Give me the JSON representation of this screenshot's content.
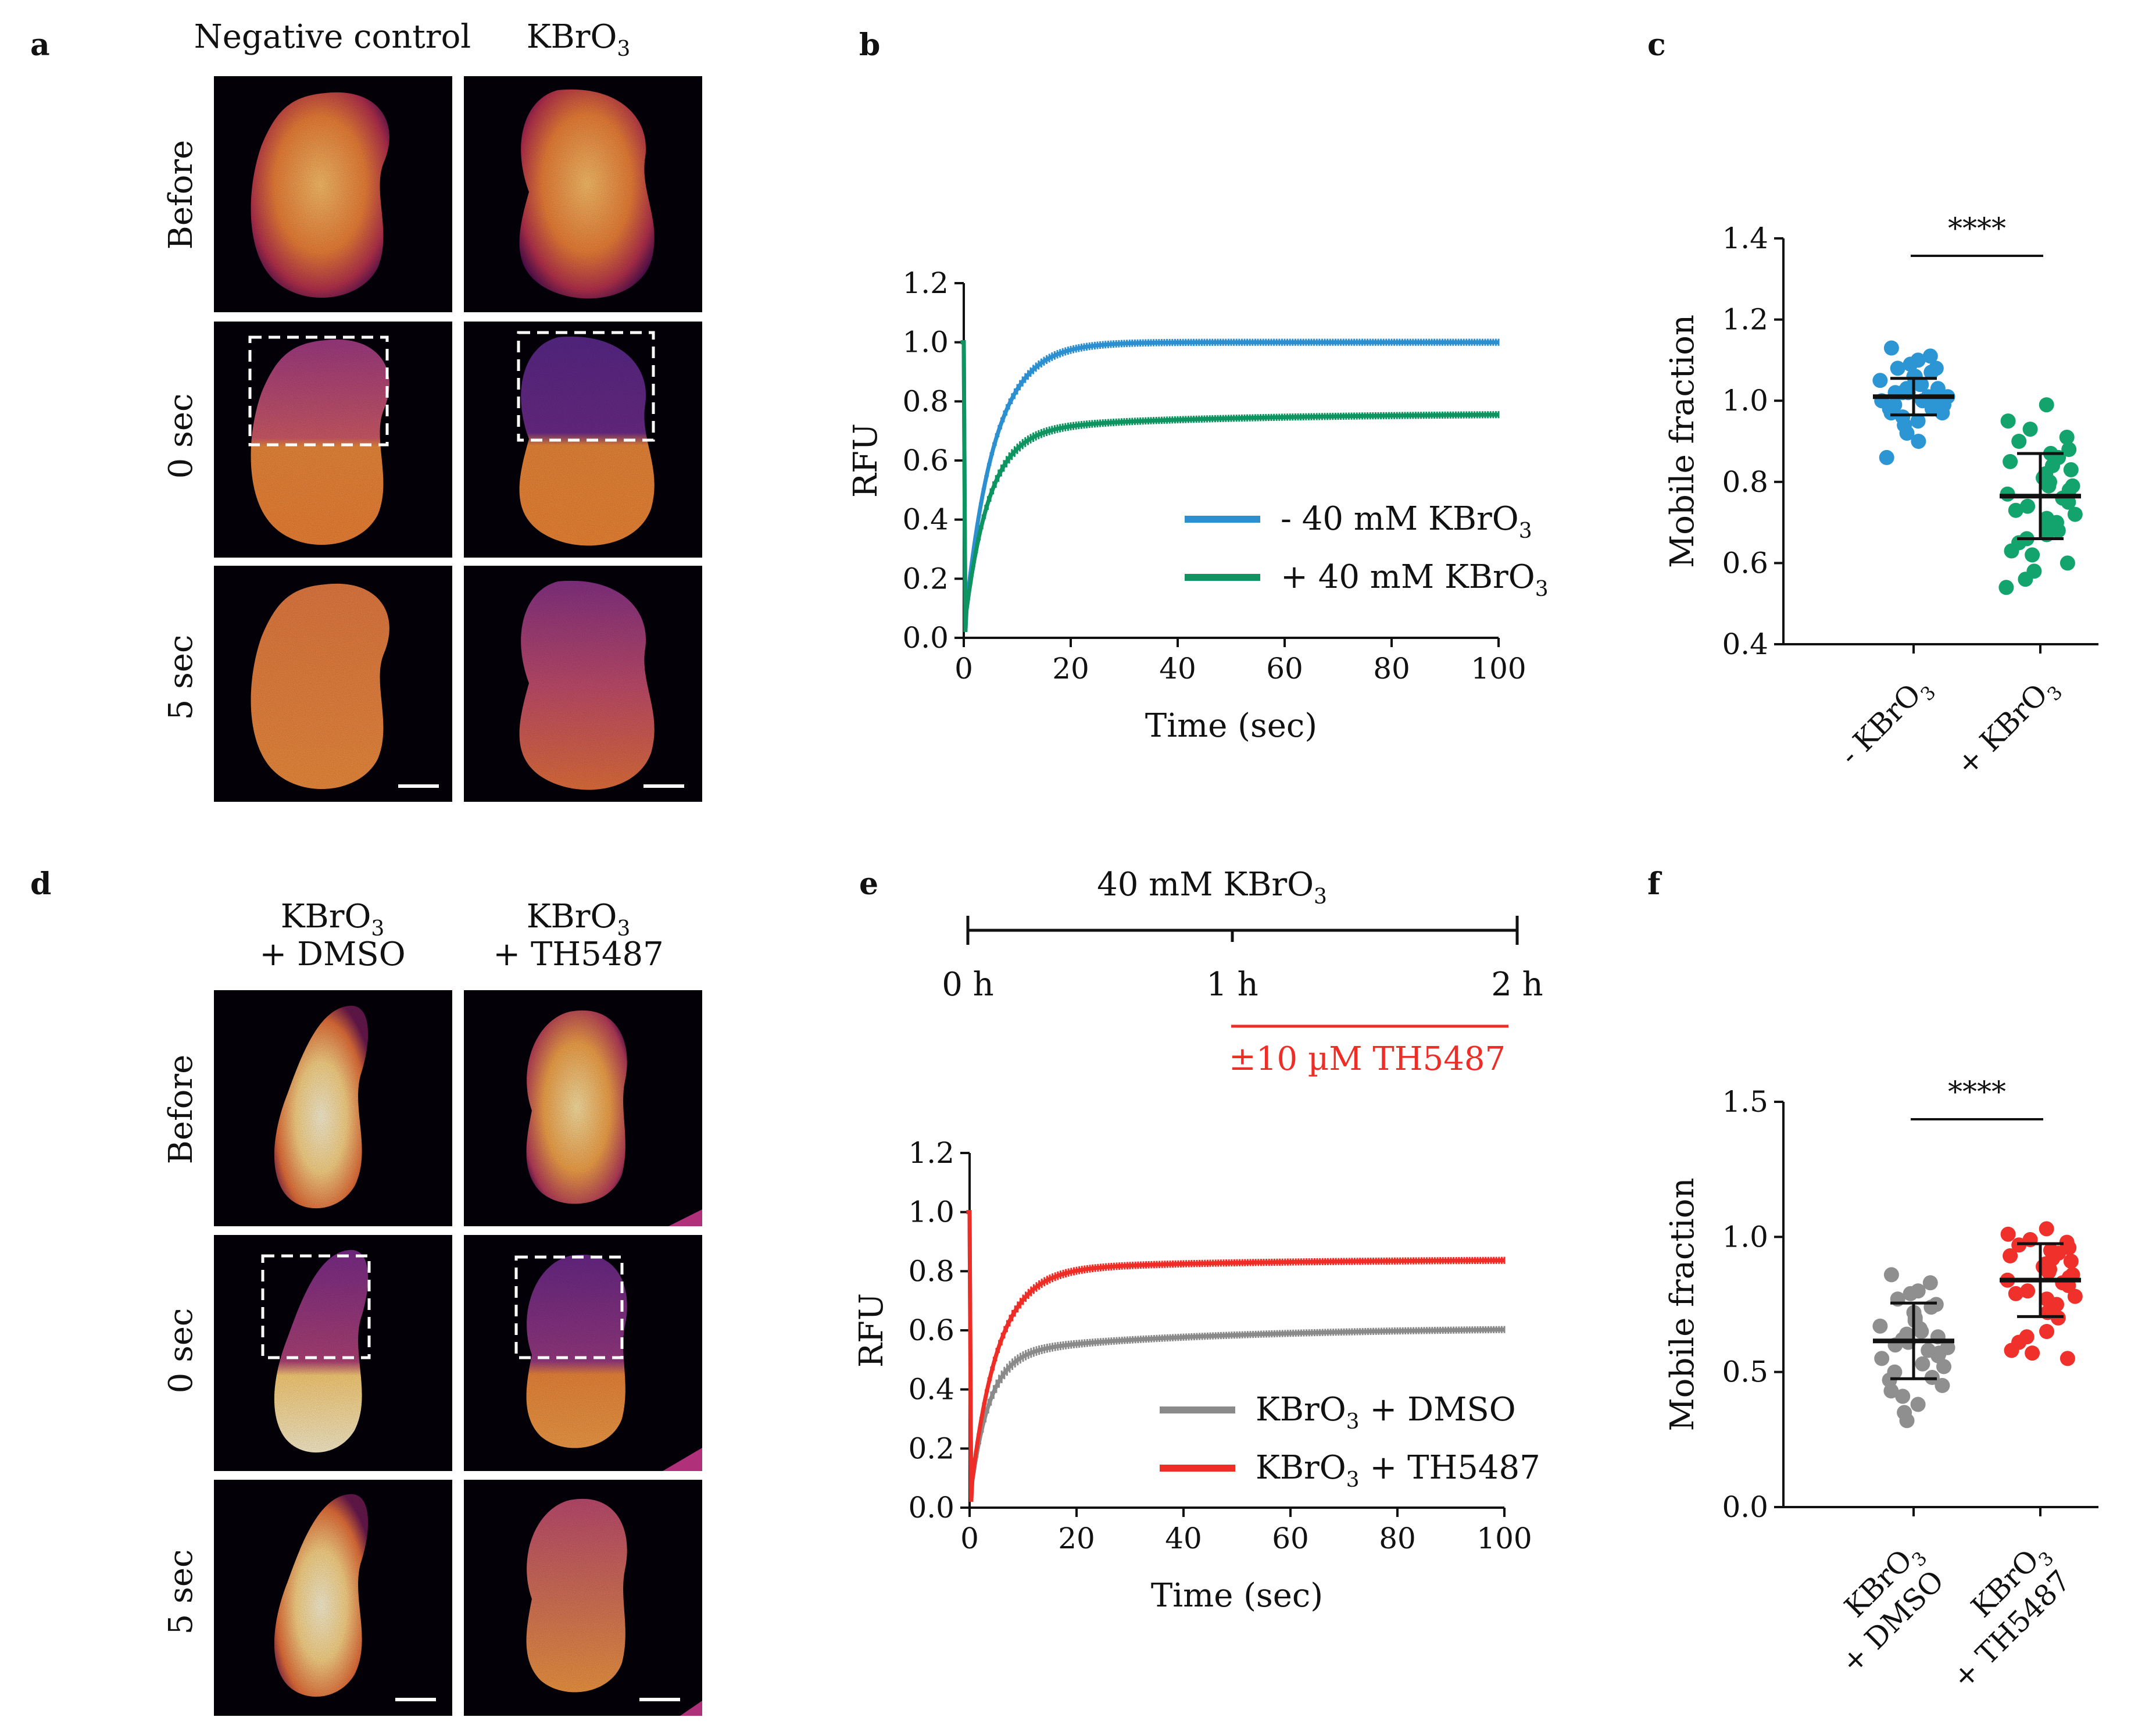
{
  "colors": {
    "blue": "#2b8fd0",
    "green": "#0e9460",
    "gray": "#8a8a8a",
    "red": "#ee2d26",
    "scatter_blue": "#2c95d4",
    "scatter_green": "#12a46c",
    "scatter_gray": "#8f8f8f",
    "scatter_red": "#f0302a",
    "timeline_red": "#ee2d26"
  },
  "panels": {
    "a": {
      "label": "a",
      "col1": "Negative control",
      "col2": "KBrO",
      "col2_sub": "3",
      "rows": [
        "Before",
        "0 sec",
        "5 sec"
      ]
    },
    "b": {
      "label": "b"
    },
    "c": {
      "label": "c"
    },
    "d": {
      "label": "d",
      "col1_line1": "KBrO",
      "col1_sub": "3",
      "col1_line2": "+ DMSO",
      "col2_line1": "KBrO",
      "col2_sub": "3",
      "col2_line2": "+ TH5487",
      "rows": [
        "Before",
        "0 sec",
        "5 sec"
      ]
    },
    "e": {
      "label": "e",
      "timeline_title": "40 mM  KBrO",
      "timeline_title_sub": "3",
      "tick_0": "0 h",
      "tick_1": "1 h",
      "tick_2": "2 h",
      "treatment": "±10 µM TH5487"
    },
    "f": {
      "label": "f"
    }
  },
  "chart_data": [
    {
      "id": "b",
      "type": "line",
      "xlabel": "Time (sec)",
      "ylabel": "RFU",
      "xlim": [
        0,
        100
      ],
      "ylim": [
        0,
        1.2
      ],
      "xticks": [
        "0",
        "20",
        "40",
        "60",
        "80",
        "100"
      ],
      "yticks": [
        "0.0",
        "0.2",
        "0.4",
        "0.6",
        "0.8",
        "1.0",
        "1.2"
      ],
      "legend_position": "center-right",
      "series": [
        {
          "name": "- 40 mM KBrO3",
          "label_main": "- 40 mM KBrO",
          "label_sub": "3",
          "color": "blue",
          "prebleach": 1.0,
          "start": 0.02,
          "plateau": 1.0,
          "tau": 5.5,
          "slow": 0.0
        },
        {
          "name": "+ 40 mM KBrO3",
          "label_main": "+ 40 mM KBrO",
          "label_sub": "3",
          "color": "green",
          "prebleach": 1.0,
          "start": 0.02,
          "plateau": 0.7,
          "tau": 4.5,
          "slow": 0.06
        }
      ]
    },
    {
      "id": "c",
      "type": "scatter",
      "ylabel": "Mobile fraction",
      "ylim": [
        0.4,
        1.4
      ],
      "yticks": [
        "0.4",
        "0.6",
        "0.8",
        "1.0",
        "1.2",
        "1.4"
      ],
      "significance": "****",
      "groups": [
        {
          "label_main": "- KBrO",
          "label_sub": "3",
          "color": "scatter_blue",
          "mean": 1.01,
          "sd": 0.045,
          "values": [
            1.13,
            1.11,
            1.1,
            1.09,
            1.08,
            1.08,
            1.07,
            1.06,
            1.06,
            1.05,
            1.05,
            1.04,
            1.04,
            1.03,
            1.03,
            1.02,
            1.02,
            1.02,
            1.01,
            1.01,
            1.01,
            1.0,
            1.0,
            1.0,
            0.99,
            0.99,
            0.98,
            0.98,
            0.97,
            0.97,
            0.96,
            0.95,
            0.94,
            0.92,
            0.9,
            0.86
          ]
        },
        {
          "label_main": "+ KBrO",
          "label_sub": "3",
          "color": "scatter_green",
          "mean": 0.765,
          "sd": 0.105,
          "values": [
            0.99,
            0.95,
            0.93,
            0.91,
            0.9,
            0.88,
            0.87,
            0.86,
            0.85,
            0.84,
            0.83,
            0.82,
            0.81,
            0.8,
            0.79,
            0.79,
            0.78,
            0.77,
            0.76,
            0.75,
            0.74,
            0.73,
            0.72,
            0.71,
            0.7,
            0.69,
            0.68,
            0.67,
            0.66,
            0.65,
            0.63,
            0.62,
            0.6,
            0.58,
            0.56,
            0.54
          ]
        }
      ]
    },
    {
      "id": "e",
      "type": "line",
      "xlabel": "Time (sec)",
      "ylabel": "RFU",
      "xlim": [
        0,
        100
      ],
      "ylim": [
        0,
        1.2
      ],
      "xticks": [
        "0",
        "20",
        "40",
        "60",
        "80",
        "100"
      ],
      "yticks": [
        "0.0",
        "0.2",
        "0.4",
        "0.6",
        "0.8",
        "1.0",
        "1.2"
      ],
      "legend_position": "bottom-right",
      "series": [
        {
          "name": "KBrO3 + DMSO",
          "label_main": "KBrO",
          "label_sub": "3",
          "label_tail": " + DMSO",
          "color": "gray",
          "prebleach": 1.0,
          "start": 0.02,
          "plateau": 0.52,
          "tau": 3.5,
          "slow": 0.09
        },
        {
          "name": "KBrO3 + TH5487",
          "label_main": "KBrO",
          "label_sub": "3",
          "label_tail": " + TH5487",
          "color": "red",
          "prebleach": 1.0,
          "start": 0.02,
          "plateau": 0.8,
          "tau": 5.0,
          "slow": 0.04
        }
      ]
    },
    {
      "id": "f",
      "type": "scatter",
      "ylabel": "Mobile fraction",
      "ylim": [
        0.0,
        1.5
      ],
      "yticks": [
        "0.0",
        "0.5",
        "1.0",
        "1.5"
      ],
      "significance": "****",
      "groups": [
        {
          "label_main": "KBrO",
          "label_sub": "3",
          "label_line2": "+ DMSO",
          "color": "scatter_gray",
          "mean": 0.615,
          "sd": 0.14,
          "values": [
            0.86,
            0.83,
            0.8,
            0.79,
            0.77,
            0.75,
            0.74,
            0.72,
            0.7,
            0.69,
            0.67,
            0.66,
            0.65,
            0.64,
            0.63,
            0.62,
            0.61,
            0.6,
            0.59,
            0.58,
            0.57,
            0.56,
            0.55,
            0.53,
            0.52,
            0.5,
            0.48,
            0.47,
            0.45,
            0.43,
            0.41,
            0.38,
            0.35,
            0.32
          ]
        },
        {
          "label_main": "KBrO",
          "label_sub": "3",
          "label_line2": "+ TH5487",
          "color": "scatter_red",
          "mean": 0.84,
          "sd": 0.135,
          "values": [
            1.03,
            1.01,
            0.99,
            0.98,
            0.97,
            0.96,
            0.95,
            0.94,
            0.93,
            0.92,
            0.91,
            0.9,
            0.89,
            0.88,
            0.87,
            0.86,
            0.85,
            0.84,
            0.83,
            0.82,
            0.8,
            0.79,
            0.78,
            0.77,
            0.75,
            0.72,
            0.7,
            0.65,
            0.63,
            0.61,
            0.58,
            0.57,
            0.55
          ]
        }
      ]
    }
  ]
}
